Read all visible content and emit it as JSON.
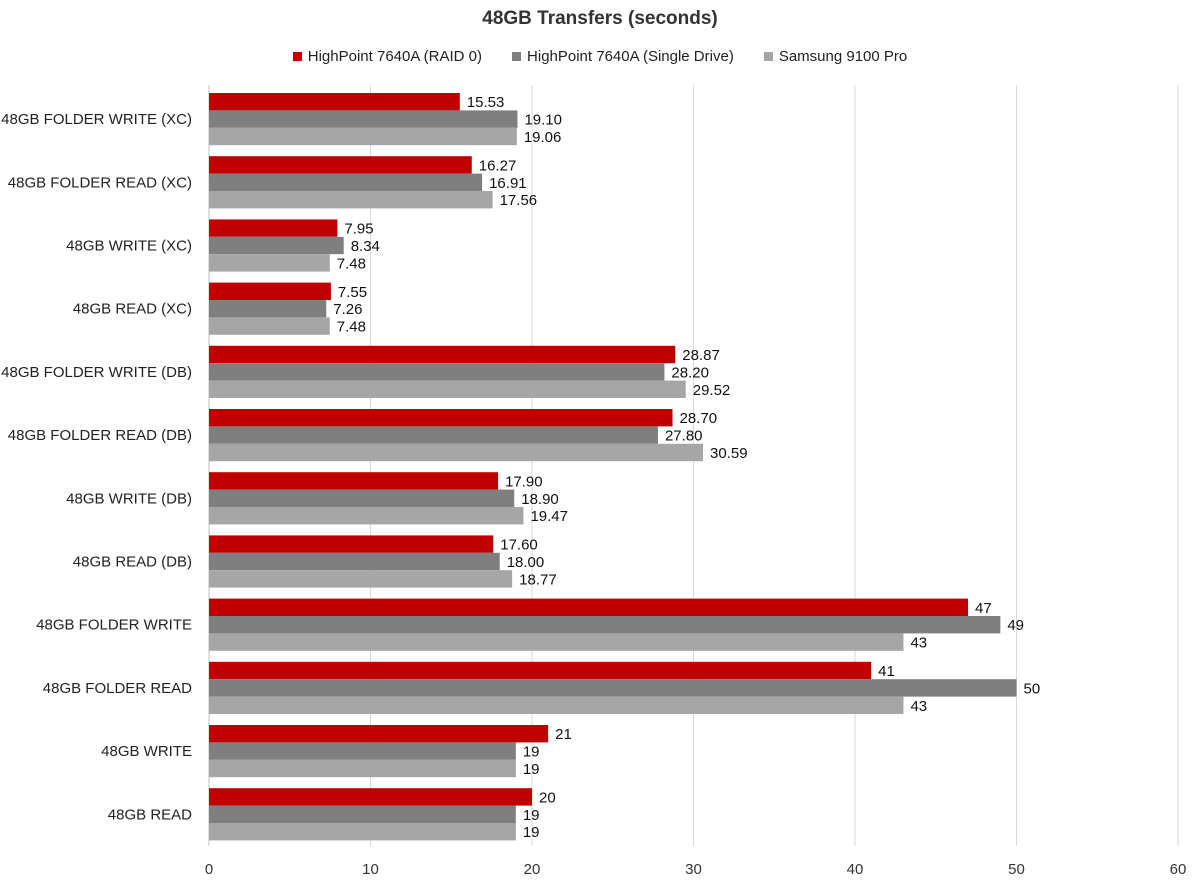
{
  "chart_data": {
    "type": "bar",
    "orientation": "horizontal",
    "title": "48GB Transfers (seconds)",
    "xlabel": "",
    "ylabel": "",
    "xlim": [
      0,
      60
    ],
    "x_ticks": [
      0,
      10,
      20,
      30,
      40,
      50,
      60
    ],
    "grid": true,
    "legend_position": "top",
    "categories": [
      "48GB FOLDER WRITE (XC)",
      "48GB FOLDER READ (XC)",
      "48GB WRITE (XC)",
      "48GB READ (XC)",
      "48GB FOLDER WRITE (DB)",
      "48GB FOLDER READ (DB)",
      "48GB WRITE (DB)",
      "48GB READ (DB)",
      "48GB FOLDER WRITE",
      "48GB FOLDER READ",
      "48GB WRITE",
      "48GB READ"
    ],
    "series": [
      {
        "name": "HighPoint 7640A (RAID 0)",
        "color": "#c00000",
        "values": [
          15.53,
          16.27,
          7.95,
          7.55,
          28.87,
          28.7,
          17.9,
          17.6,
          47,
          41,
          21,
          20
        ],
        "labels": [
          "15.53",
          "16.27",
          "7.95",
          "7.55",
          "28.87",
          "28.70",
          "17.90",
          "17.60",
          "47",
          "41",
          "21",
          "20"
        ]
      },
      {
        "name": "HighPoint 7640A (Single Drive)",
        "color": "#7f7f7f",
        "values": [
          19.1,
          16.91,
          8.34,
          7.26,
          28.2,
          27.8,
          18.9,
          18.0,
          49,
          50,
          19,
          19
        ],
        "labels": [
          "19.10",
          "16.91",
          "8.34",
          "7.26",
          "28.20",
          "27.80",
          "18.90",
          "18.00",
          "49",
          "50",
          "19",
          "19"
        ]
      },
      {
        "name": "Samsung 9100 Pro",
        "color": "#a6a6a6",
        "values": [
          19.06,
          17.56,
          7.48,
          7.48,
          29.52,
          30.59,
          19.47,
          18.77,
          43,
          43,
          19,
          19
        ],
        "labels": [
          "19.06",
          "17.56",
          "7.48",
          "7.48",
          "29.52",
          "30.59",
          "19.47",
          "18.77",
          "43",
          "43",
          "19",
          "19"
        ]
      }
    ]
  }
}
